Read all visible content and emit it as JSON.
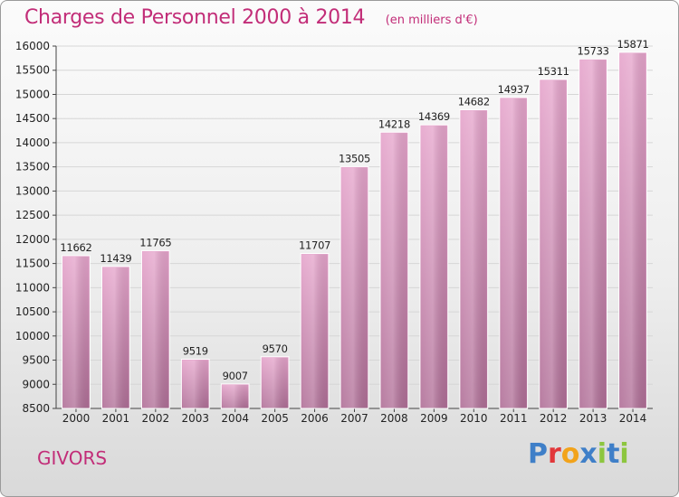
{
  "header": {
    "title": "Charges de Personnel 2000 à 2014",
    "unit": "(en milliers d'€)"
  },
  "footer": {
    "city": "GIVORS",
    "logo_text": "Proxiti"
  },
  "colors": {
    "title": "#c22d78",
    "bar_top": "#e6a5cc",
    "bar_bottom": "#b06f97",
    "grid": "#d6d6d6"
  },
  "chart_data": {
    "type": "bar",
    "title": "Charges de Personnel 2000 à 2014",
    "subtitle": "(en milliers d'€)",
    "categories": [
      "2000",
      "2001",
      "2002",
      "2003",
      "2004",
      "2005",
      "2006",
      "2007",
      "2008",
      "2009",
      "2010",
      "2011",
      "2012",
      "2013",
      "2014"
    ],
    "values": [
      11662,
      11439,
      11765,
      9519,
      9007,
      9570,
      11707,
      13505,
      14218,
      14369,
      14682,
      14937,
      15311,
      15733,
      15871
    ],
    "ylim": [
      8500,
      16000
    ],
    "yticks": [
      8500,
      9000,
      9500,
      10000,
      10500,
      11000,
      11500,
      12000,
      12500,
      13000,
      13500,
      14000,
      14500,
      15000,
      15500,
      16000
    ],
    "grid": true,
    "data_labels": true
  }
}
